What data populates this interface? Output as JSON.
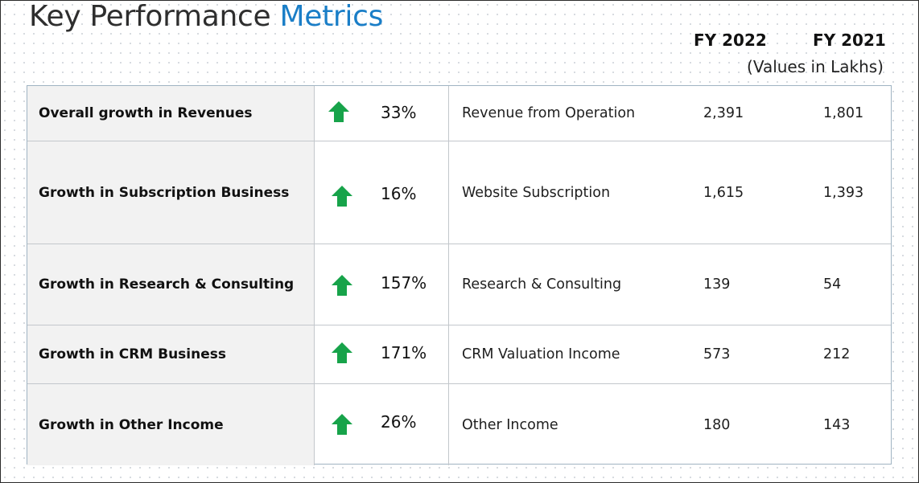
{
  "header": {
    "title_main": "Key Performance",
    "title_accent": "Metrics",
    "col_fy2022": "FY 2022",
    "col_fy2021": "FY 2021",
    "unit_note": "(Values in Lakhs)"
  },
  "colors": {
    "accent": "#1a7ec7",
    "arrow_green": "#17a34a",
    "highlight": "#ffe800"
  },
  "rows": [
    {
      "metric": "Overall growth in Revenues",
      "icon": "up-arrow-icon",
      "growth": "33%",
      "line_item": "Revenue from Operation",
      "fy2022": "2,391",
      "fy2021": "1,801"
    },
    {
      "metric": "Growth in Subscription Business",
      "icon": "up-arrow-icon",
      "growth": "16%",
      "line_item": "Website Subscription",
      "fy2022": "1,615",
      "fy2021": "1,393"
    },
    {
      "metric": "Growth in Research & Consulting",
      "icon": "up-arrow-icon",
      "growth": "157%",
      "line_item": "Research & Consulting",
      "fy2022": "139",
      "fy2021": "54"
    },
    {
      "metric": "Growth in CRM Business",
      "icon": "up-arrow-icon",
      "growth": "171%",
      "line_item": "CRM Valuation Income",
      "fy2022": "573",
      "fy2021": "212"
    },
    {
      "metric": "Growth in Other Income",
      "icon": "up-arrow-icon",
      "growth": "26%",
      "line_item": "Other Income",
      "fy2022": "180",
      "fy2021": "143"
    }
  ]
}
